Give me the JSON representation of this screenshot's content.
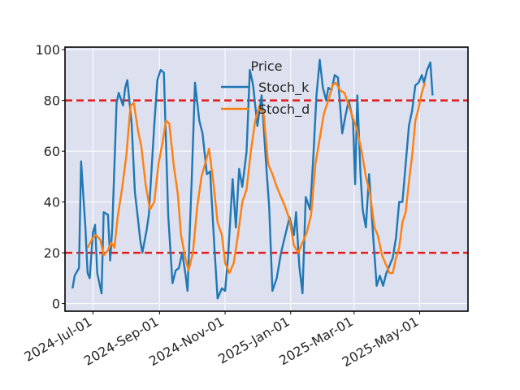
{
  "chart_data": {
    "type": "line",
    "title": "",
    "xlabel": "",
    "ylabel": "",
    "legend": {
      "title": "Price",
      "placement": "top-center"
    },
    "ylim": [
      -3,
      101
    ],
    "xlim": [
      "2024-06-05",
      "2025-06-15"
    ],
    "grid": true,
    "yticks": [
      "0",
      "20",
      "40",
      "60",
      "80",
      "100"
    ],
    "xticks": [
      {
        "date": "2024-07-01",
        "label": "2024-Jul-01"
      },
      {
        "date": "2024-09-01",
        "label": "2024-Sep-01"
      },
      {
        "date": "2024-11-01",
        "label": "2024-Nov-01"
      },
      {
        "date": "2025-01-01",
        "label": "2025-Jan-01"
      },
      {
        "date": "2025-03-01",
        "label": "2025-Mar-01"
      },
      {
        "date": "2025-05-01",
        "label": "2025-May-01"
      }
    ],
    "hlines": [
      {
        "y": 80,
        "color": "#e41a1c",
        "style": "dashed"
      },
      {
        "y": 20,
        "color": "#e41a1c",
        "style": "dashed"
      }
    ],
    "colors": {
      "background": "#dde1ef",
      "stoch_k": "#1f77b4",
      "stoch_d": "#ff7f0e"
    },
    "series": [
      {
        "name": "Stoch_k",
        "color": "#1f77b4",
        "points": [
          [
            "2024-06-12",
            6
          ],
          [
            "2024-06-14",
            11
          ],
          [
            "2024-06-18",
            14
          ],
          [
            "2024-06-20",
            56
          ],
          [
            "2024-06-24",
            30
          ],
          [
            "2024-06-26",
            12
          ],
          [
            "2024-06-28",
            10
          ],
          [
            "2024-07-01",
            28
          ],
          [
            "2024-07-03",
            31
          ],
          [
            "2024-07-05",
            12
          ],
          [
            "2024-07-09",
            4
          ],
          [
            "2024-07-11",
            36
          ],
          [
            "2024-07-15",
            35
          ],
          [
            "2024-07-17",
            17
          ],
          [
            "2024-07-19",
            30
          ],
          [
            "2024-07-23",
            79
          ],
          [
            "2024-07-25",
            83
          ],
          [
            "2024-07-29",
            78
          ],
          [
            "2024-07-31",
            85
          ],
          [
            "2024-08-02",
            88
          ],
          [
            "2024-08-06",
            71
          ],
          [
            "2024-08-09",
            44
          ],
          [
            "2024-08-12",
            33
          ],
          [
            "2024-08-14",
            25
          ],
          [
            "2024-08-16",
            20
          ],
          [
            "2024-08-20",
            29
          ],
          [
            "2024-08-22",
            35
          ],
          [
            "2024-08-27",
            70
          ],
          [
            "2024-08-30",
            88
          ],
          [
            "2024-09-02",
            92
          ],
          [
            "2024-09-05",
            91
          ],
          [
            "2024-09-09",
            35
          ],
          [
            "2024-09-13",
            8
          ],
          [
            "2024-09-16",
            13
          ],
          [
            "2024-09-19",
            14
          ],
          [
            "2024-09-22",
            20
          ],
          [
            "2024-09-25",
            12
          ],
          [
            "2024-09-27",
            5
          ],
          [
            "2024-10-01",
            50
          ],
          [
            "2024-10-04",
            87
          ],
          [
            "2024-10-08",
            72
          ],
          [
            "2024-10-11",
            67
          ],
          [
            "2024-10-15",
            51
          ],
          [
            "2024-10-18",
            52
          ],
          [
            "2024-10-22",
            22
          ],
          [
            "2024-10-25",
            2
          ],
          [
            "2024-10-29",
            6
          ],
          [
            "2024-11-01",
            5
          ],
          [
            "2024-11-04",
            20
          ],
          [
            "2024-11-08",
            49
          ],
          [
            "2024-11-11",
            30
          ],
          [
            "2024-11-14",
            53
          ],
          [
            "2024-11-17",
            46
          ],
          [
            "2024-11-21",
            60
          ],
          [
            "2024-11-24",
            92
          ],
          [
            "2024-11-27",
            86
          ],
          [
            "2024-12-01",
            70
          ],
          [
            "2024-12-05",
            82
          ],
          [
            "2024-12-09",
            56
          ],
          [
            "2024-12-12",
            38
          ],
          [
            "2024-12-15",
            5
          ],
          [
            "2024-12-19",
            10
          ],
          [
            "2024-12-23",
            20
          ],
          [
            "2024-12-27",
            27
          ],
          [
            "2024-12-31",
            34
          ],
          [
            "2025-01-04",
            27
          ],
          [
            "2025-01-06",
            36
          ],
          [
            "2025-01-09",
            15
          ],
          [
            "2025-01-12",
            4
          ],
          [
            "2025-01-15",
            42
          ],
          [
            "2025-01-19",
            37
          ],
          [
            "2025-01-22",
            57
          ],
          [
            "2025-01-25",
            82
          ],
          [
            "2025-01-28",
            96
          ],
          [
            "2025-01-31",
            85
          ],
          [
            "2025-02-03",
            80
          ],
          [
            "2025-02-05",
            85
          ],
          [
            "2025-02-08",
            84
          ],
          [
            "2025-02-11",
            90
          ],
          [
            "2025-02-14",
            89
          ],
          [
            "2025-02-18",
            67
          ],
          [
            "2025-02-21",
            74
          ],
          [
            "2025-02-24",
            80
          ],
          [
            "2025-02-28",
            72
          ],
          [
            "2025-03-02",
            47
          ],
          [
            "2025-03-04",
            82
          ],
          [
            "2025-03-07",
            51
          ],
          [
            "2025-03-09",
            37
          ],
          [
            "2025-03-12",
            30
          ],
          [
            "2025-03-15",
            51
          ],
          [
            "2025-03-19",
            25
          ],
          [
            "2025-03-22",
            7
          ],
          [
            "2025-03-25",
            11
          ],
          [
            "2025-03-28",
            7
          ],
          [
            "2025-03-31",
            12
          ],
          [
            "2025-04-03",
            15
          ],
          [
            "2025-04-06",
            18
          ],
          [
            "2025-04-09",
            26
          ],
          [
            "2025-04-12",
            40
          ],
          [
            "2025-04-15",
            40
          ],
          [
            "2025-04-18",
            55
          ],
          [
            "2025-04-21",
            70
          ],
          [
            "2025-04-24",
            76
          ],
          [
            "2025-04-27",
            86
          ],
          [
            "2025-04-30",
            87
          ],
          [
            "2025-05-03",
            90
          ],
          [
            "2025-05-05",
            87
          ],
          [
            "2025-05-08",
            92
          ],
          [
            "2025-05-11",
            95
          ],
          [
            "2025-05-13",
            82
          ]
        ]
      },
      {
        "name": "Stoch_d",
        "color": "#ff7f0e",
        "points": [
          [
            "2024-06-26",
            22
          ],
          [
            "2024-07-01",
            26
          ],
          [
            "2024-07-04",
            27
          ],
          [
            "2024-07-08",
            25
          ],
          [
            "2024-07-11",
            19
          ],
          [
            "2024-07-15",
            21
          ],
          [
            "2024-07-18",
            24
          ],
          [
            "2024-07-21",
            22
          ],
          [
            "2024-07-24",
            34
          ],
          [
            "2024-07-28",
            45
          ],
          [
            "2024-08-01",
            58
          ],
          [
            "2024-08-05",
            78
          ],
          [
            "2024-08-08",
            79
          ],
          [
            "2024-08-12",
            68
          ],
          [
            "2024-08-15",
            62
          ],
          [
            "2024-08-19",
            47
          ],
          [
            "2024-08-23",
            37
          ],
          [
            "2024-08-27",
            40
          ],
          [
            "2024-08-31",
            55
          ],
          [
            "2024-09-04",
            64
          ],
          [
            "2024-09-07",
            72
          ],
          [
            "2024-09-10",
            71
          ],
          [
            "2024-09-14",
            55
          ],
          [
            "2024-09-18",
            43
          ],
          [
            "2024-09-21",
            27
          ],
          [
            "2024-09-25",
            18
          ],
          [
            "2024-09-28",
            13
          ],
          [
            "2024-10-02",
            20
          ],
          [
            "2024-10-06",
            38
          ],
          [
            "2024-10-10",
            50
          ],
          [
            "2024-10-14",
            56
          ],
          [
            "2024-10-17",
            61
          ],
          [
            "2024-10-21",
            48
          ],
          [
            "2024-10-25",
            32
          ],
          [
            "2024-10-29",
            27
          ],
          [
            "2024-11-01",
            16
          ],
          [
            "2024-11-05",
            12
          ],
          [
            "2024-11-09",
            16
          ],
          [
            "2024-11-13",
            27
          ],
          [
            "2024-11-17",
            40
          ],
          [
            "2024-11-21",
            45
          ],
          [
            "2024-11-25",
            60
          ],
          [
            "2024-11-29",
            72
          ],
          [
            "2024-12-03",
            78
          ],
          [
            "2024-12-07",
            74
          ],
          [
            "2024-12-11",
            55
          ],
          [
            "2024-12-15",
            51
          ],
          [
            "2024-12-19",
            46
          ],
          [
            "2024-12-23",
            42
          ],
          [
            "2024-12-27",
            38
          ],
          [
            "2024-12-31",
            33
          ],
          [
            "2025-01-04",
            23
          ],
          [
            "2025-01-08",
            20
          ],
          [
            "2025-01-12",
            24
          ],
          [
            "2025-01-16",
            28
          ],
          [
            "2025-01-20",
            35
          ],
          [
            "2025-01-24",
            55
          ],
          [
            "2025-01-28",
            65
          ],
          [
            "2025-02-01",
            75
          ],
          [
            "2025-02-05",
            80
          ],
          [
            "2025-02-09",
            86
          ],
          [
            "2025-02-12",
            87
          ],
          [
            "2025-02-16",
            84
          ],
          [
            "2025-02-20",
            83
          ],
          [
            "2025-02-24",
            78
          ],
          [
            "2025-02-28",
            73
          ],
          [
            "2025-03-04",
            68
          ],
          [
            "2025-03-08",
            60
          ],
          [
            "2025-03-12",
            50
          ],
          [
            "2025-03-16",
            43
          ],
          [
            "2025-03-20",
            30
          ],
          [
            "2025-03-23",
            27
          ],
          [
            "2025-03-27",
            19
          ],
          [
            "2025-03-31",
            15
          ],
          [
            "2025-04-03",
            12
          ],
          [
            "2025-04-06",
            12
          ],
          [
            "2025-04-09",
            18
          ],
          [
            "2025-04-12",
            22
          ],
          [
            "2025-04-15",
            32
          ],
          [
            "2025-04-18",
            36
          ],
          [
            "2025-04-21",
            48
          ],
          [
            "2025-04-24",
            58
          ],
          [
            "2025-04-27",
            72
          ],
          [
            "2025-04-30",
            77
          ],
          [
            "2025-05-03",
            83
          ],
          [
            "2025-05-06",
            87
          ]
        ]
      }
    ]
  }
}
